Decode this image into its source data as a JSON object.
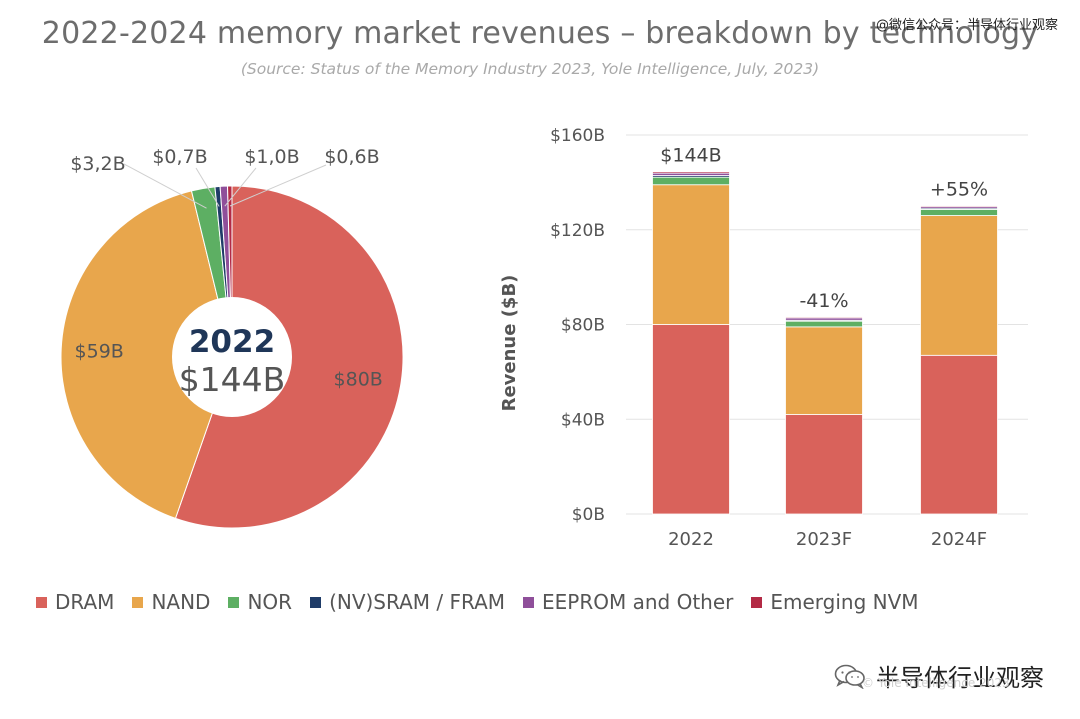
{
  "header": {
    "title": "2022-2024 memory market revenues – breakdown by technology",
    "subtitle": "(Source:  Status of the Memory Industry 2023, Yole Intelligence, July, 2023)",
    "watermark_top": "@微信公众号：半导体行业观察"
  },
  "footer": {
    "wechat_label": "半导体行业观察",
    "credit": "© Yole Intelligence 2023",
    "wechat_icon": "wechat-icon"
  },
  "colors": {
    "DRAM": "#d9625b",
    "NAND": "#e8a64c",
    "NOR": "#5daf63",
    "(NV)SRAM / FRAM": "#1f3c68",
    "EEPROM and Other": "#8f4f9a",
    "Emerging NVM": "#b32a45",
    "center_text": "#1f3658"
  },
  "chart_data": [
    {
      "type": "pie",
      "center_label": "2022",
      "center_value": "$144B",
      "slices": [
        {
          "name": "DRAM",
          "value": 80,
          "label": "$80B"
        },
        {
          "name": "NAND",
          "value": 59,
          "label": "$59B"
        },
        {
          "name": "NOR",
          "value": 3.2,
          "label": "$3,2B"
        },
        {
          "name": "(NV)SRAM / FRAM",
          "value": 0.7,
          "label": "$0,7B"
        },
        {
          "name": "EEPROM and Other",
          "value": 1.0,
          "label": "$1,0B"
        },
        {
          "name": "Emerging NVM",
          "value": 0.6,
          "label": "$0,6B"
        }
      ]
    },
    {
      "type": "bar",
      "stacked": true,
      "categories": [
        "2022",
        "2023F",
        "2024F"
      ],
      "ylabel": "Revenue ($B)",
      "ylim": [
        0,
        160
      ],
      "yticks": [
        0,
        40,
        80,
        120,
        160
      ],
      "ytick_labels": [
        "$0B",
        "$40B",
        "$80B",
        "$120B",
        "$160B"
      ],
      "grid": true,
      "series": [
        {
          "name": "DRAM",
          "values": [
            80,
            42,
            67
          ]
        },
        {
          "name": "NAND",
          "values": [
            59,
            37,
            59
          ]
        },
        {
          "name": "NOR",
          "values": [
            3.2,
            2.4,
            2.6
          ]
        },
        {
          "name": "(NV)SRAM / FRAM",
          "values": [
            0.7,
            0.4,
            0.5
          ]
        },
        {
          "name": "EEPROM and Other",
          "values": [
            1.0,
            1.0,
            0.7
          ]
        },
        {
          "name": "Emerging NVM",
          "values": [
            0.6,
            0.4,
            0.4
          ]
        }
      ],
      "bar_labels": [
        "$144B",
        "-41%",
        "+55%"
      ]
    }
  ]
}
